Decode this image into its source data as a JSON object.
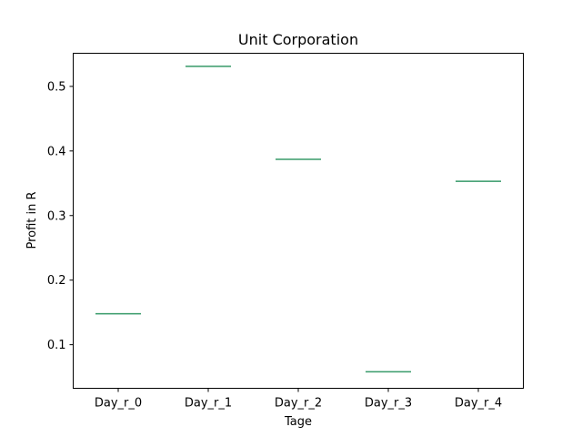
{
  "chart_data": {
    "type": "box",
    "title": "Unit Corporation",
    "xlabel": "Tage",
    "ylabel": "Profit in R",
    "categories": [
      "Day_r_0",
      "Day_r_1",
      "Day_r_2",
      "Day_r_3",
      "Day_r_4"
    ],
    "values": [
      0.148,
      0.531,
      0.387,
      0.058,
      0.353
    ],
    "ylim": [
      0.0325,
      0.5513
    ],
    "yticks": [
      0.1,
      0.2,
      0.3,
      0.4,
      0.5
    ],
    "ytick_labels": [
      "0.1",
      "0.2",
      "0.3",
      "0.4",
      "0.5"
    ],
    "grid": false,
    "colors": {
      "median": "#3a9c6a",
      "box": "#1f77b4",
      "frame": "#000000"
    }
  }
}
